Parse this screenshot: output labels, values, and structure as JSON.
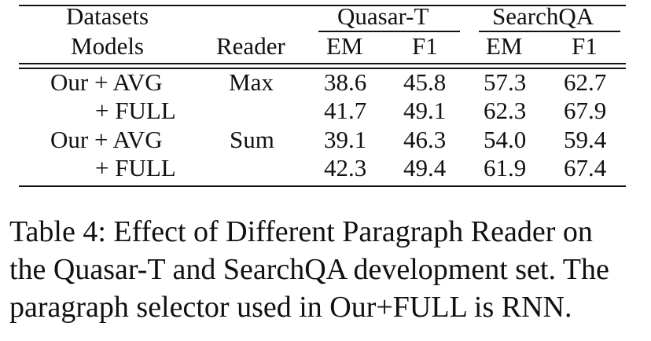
{
  "table": {
    "header_groups": {
      "datasets": "Datasets",
      "quasar": "Quasar-T",
      "searchqa": "SearchQA"
    },
    "columns": {
      "models": "Models",
      "reader": "Reader",
      "q_em": "EM",
      "q_f1": "F1",
      "s_em": "EM",
      "s_f1": "F1"
    },
    "rows": [
      {
        "model": "Our + AVG",
        "reader": "Max",
        "q_em": "38.6",
        "q_f1": "45.8",
        "s_em": "57.3",
        "s_f1": "62.7"
      },
      {
        "model": "+ FULL",
        "reader": "",
        "q_em": "41.7",
        "q_f1": "49.1",
        "s_em": "62.3",
        "s_f1": "67.9"
      },
      {
        "model": "Our + AVG",
        "reader": "Sum",
        "q_em": "39.1",
        "q_f1": "46.3",
        "s_em": "54.0",
        "s_f1": "59.4"
      },
      {
        "model": "+ FULL",
        "reader": "",
        "q_em": "42.3",
        "q_f1": "49.4",
        "s_em": "61.9",
        "s_f1": "67.4"
      }
    ]
  },
  "caption": {
    "line1": "Table 4: Effect of Different Paragraph Reader on",
    "line2": "the Quasar-T and SearchQA development set. The",
    "line3": "paragraph selector used in Our+FULL is RNN."
  }
}
